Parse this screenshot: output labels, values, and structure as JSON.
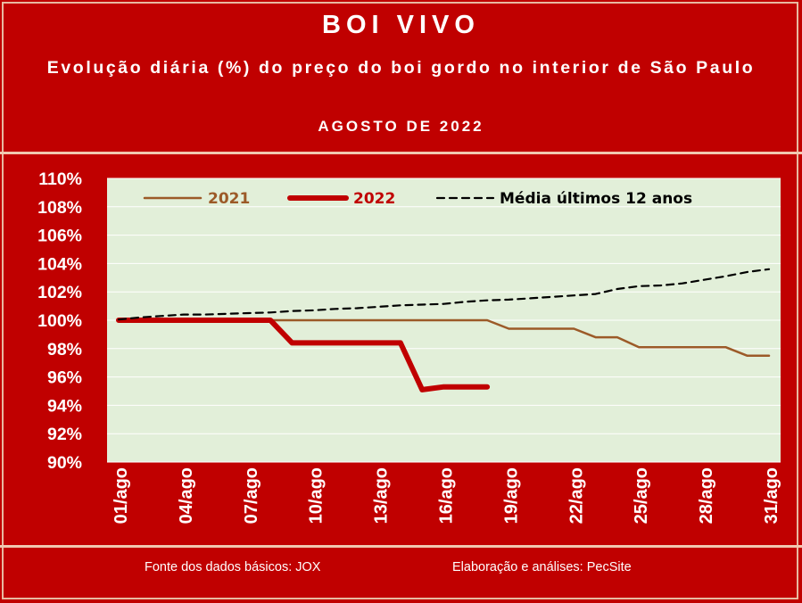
{
  "header": {
    "title": "BOI VIVO",
    "subtitle": "Evolução diária (%) do preço do boi gordo no interior de São Paulo",
    "period": "AGOSTO DE 2022"
  },
  "footer": {
    "source": "Fonte dos dados básicos: JOX",
    "credits": "Elaboração e análises: PecSite"
  },
  "colors": {
    "background": "#c00000",
    "plot_area": "#e2efd9",
    "series_2021": "#9c5a28",
    "series_2022": "#c00000",
    "series_media": "#000000"
  },
  "chart_data": {
    "type": "line",
    "x": [
      "01/ago",
      "02/ago",
      "03/ago",
      "04/ago",
      "05/ago",
      "06/ago",
      "07/ago",
      "08/ago",
      "09/ago",
      "10/ago",
      "11/ago",
      "12/ago",
      "13/ago",
      "14/ago",
      "15/ago",
      "16/ago",
      "17/ago",
      "18/ago",
      "19/ago",
      "20/ago",
      "21/ago",
      "22/ago",
      "23/ago",
      "24/ago",
      "25/ago",
      "26/ago",
      "27/ago",
      "28/ago",
      "29/ago",
      "30/ago",
      "31/ago"
    ],
    "x_tick_labels": [
      "01/ago",
      "04/ago",
      "07/ago",
      "10/ago",
      "13/ago",
      "16/ago",
      "19/ago",
      "22/ago",
      "25/ago",
      "28/ago",
      "31/ago"
    ],
    "y_tick_labels": [
      "90%",
      "92%",
      "94%",
      "96%",
      "98%",
      "100%",
      "102%",
      "104%",
      "106%",
      "108%",
      "110%"
    ],
    "ylim": [
      90,
      110
    ],
    "legend_placement": "top",
    "series": [
      {
        "name": "2021",
        "values": [
          100,
          100,
          100,
          100,
          100,
          100,
          100,
          100,
          100,
          100,
          100,
          100,
          100,
          100,
          100,
          100,
          100,
          100,
          99.4,
          99.4,
          99.4,
          99.4,
          98.8,
          98.8,
          98.1,
          98.1,
          98.1,
          98.1,
          98.1,
          97.5,
          97.5
        ]
      },
      {
        "name": "2022",
        "values": [
          100,
          100,
          100,
          100,
          100,
          100,
          100,
          100,
          98.4,
          98.4,
          98.4,
          98.4,
          98.4,
          98.4,
          95.1,
          95.3,
          95.3,
          95.3,
          null,
          null,
          null,
          null,
          null,
          null,
          null,
          null,
          null,
          null,
          null,
          null,
          null
        ]
      },
      {
        "name": "Média últimos 12 anos",
        "values": [
          100.05,
          100.2,
          100.3,
          100.4,
          100.4,
          100.45,
          100.5,
          100.55,
          100.65,
          100.7,
          100.8,
          100.85,
          100.95,
          101.05,
          101.1,
          101.15,
          101.3,
          101.4,
          101.45,
          101.55,
          101.65,
          101.75,
          101.85,
          102.2,
          102.4,
          102.45,
          102.6,
          102.85,
          103.1,
          103.4,
          103.6
        ]
      }
    ]
  }
}
